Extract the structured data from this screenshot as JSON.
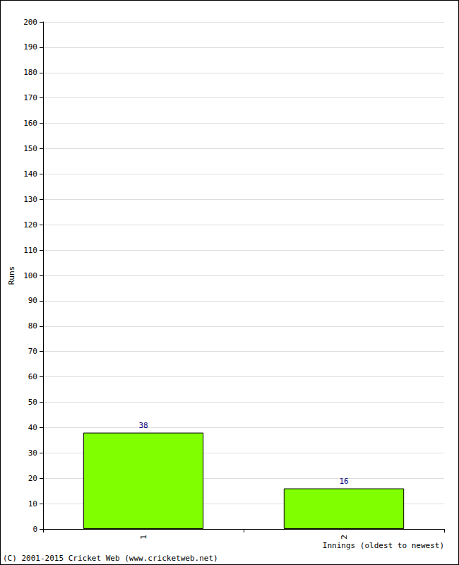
{
  "chart_data": {
    "type": "bar",
    "x_label": "Innings (oldest to newest)",
    "y_label": "Runs",
    "annotations": [
      "(C) 2001-2015 Cricket Web (www.cricketweb.net)"
    ],
    "categories": [
      "1",
      "2"
    ],
    "values": [
      38,
      16
    ],
    "color": "#80ff00",
    "data_labels": true,
    "ylim": [
      0,
      200
    ],
    "yticks": [
      0,
      10,
      20,
      30,
      40,
      50,
      60,
      70,
      80,
      90,
      100,
      110,
      120,
      130,
      140,
      150,
      160,
      170,
      180,
      190,
      200
    ],
    "grid": true
  }
}
